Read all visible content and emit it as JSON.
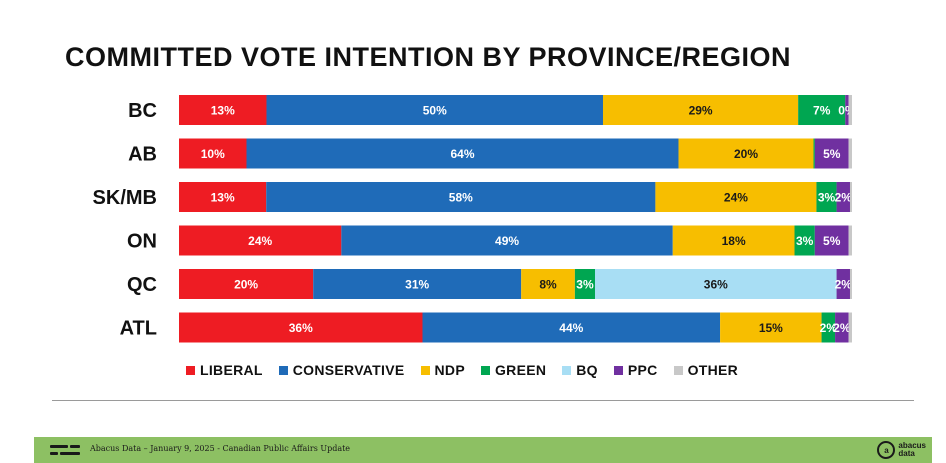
{
  "title": "COMMITTED VOTE INTENTION BY PROVINCE/REGION",
  "footer": {
    "text": "Abacus Data – January 9, 2025 - Canadian Public Affairs Update",
    "brand_top": "abacus",
    "brand_bottom": "data",
    "brand_mark": "a"
  },
  "colors": {
    "LIBERAL": "#ee1c23",
    "CONSERVATIVE": "#1f6bb8",
    "NDP": "#f7be00",
    "GREEN": "#00a651",
    "BQ": "#a8def4",
    "PPC": "#7030a0",
    "OTHER": "#c8c8c8"
  },
  "chart_data": {
    "type": "bar",
    "orientation": "horizontal",
    "stacked": true,
    "title": "COMMITTED VOTE INTENTION BY PROVINCE/REGION",
    "categories": [
      "BC",
      "AB",
      "SK/MB",
      "ON",
      "QC",
      "ATL"
    ],
    "legend_position": "bottom",
    "series": [
      {
        "name": "LIBERAL",
        "values": [
          13,
          10,
          13,
          24,
          20,
          36
        ],
        "labels": [
          "13%",
          "10%",
          "13%",
          "24%",
          "20%",
          "36%"
        ]
      },
      {
        "name": "CONSERVATIVE",
        "values": [
          50,
          64,
          58,
          49,
          31,
          44
        ],
        "labels": [
          "50%",
          "64%",
          "58%",
          "49%",
          "31%",
          "44%"
        ]
      },
      {
        "name": "NDP",
        "values": [
          29,
          20,
          24,
          18,
          8,
          15
        ],
        "labels": [
          "29%",
          "20%",
          "24%",
          "18%",
          "8%",
          "15%"
        ]
      },
      {
        "name": "GREEN",
        "values": [
          7,
          0.2,
          3,
          3,
          3,
          2
        ],
        "labels": [
          "7%",
          "",
          "3%",
          "3%",
          "3%",
          "2%"
        ]
      },
      {
        "name": "BQ",
        "values": [
          0,
          0,
          0,
          0,
          36,
          0
        ],
        "labels": [
          "",
          "",
          "",
          "",
          "36%",
          ""
        ]
      },
      {
        "name": "PPC",
        "values": [
          0.5,
          5,
          2,
          5,
          2,
          2
        ],
        "labels": [
          "0%",
          "5%",
          "2%",
          "5%",
          "2%",
          "2%"
        ]
      },
      {
        "name": "OTHER",
        "values": [
          0.5,
          0.5,
          0.3,
          0.5,
          0.3,
          0.5
        ],
        "labels": [
          "",
          "",
          "",
          "",
          "",
          ""
        ]
      }
    ],
    "legend": [
      "LIBERAL",
      "CONSERVATIVE",
      "NDP",
      "GREEN",
      "BQ",
      "PPC",
      "OTHER"
    ]
  }
}
